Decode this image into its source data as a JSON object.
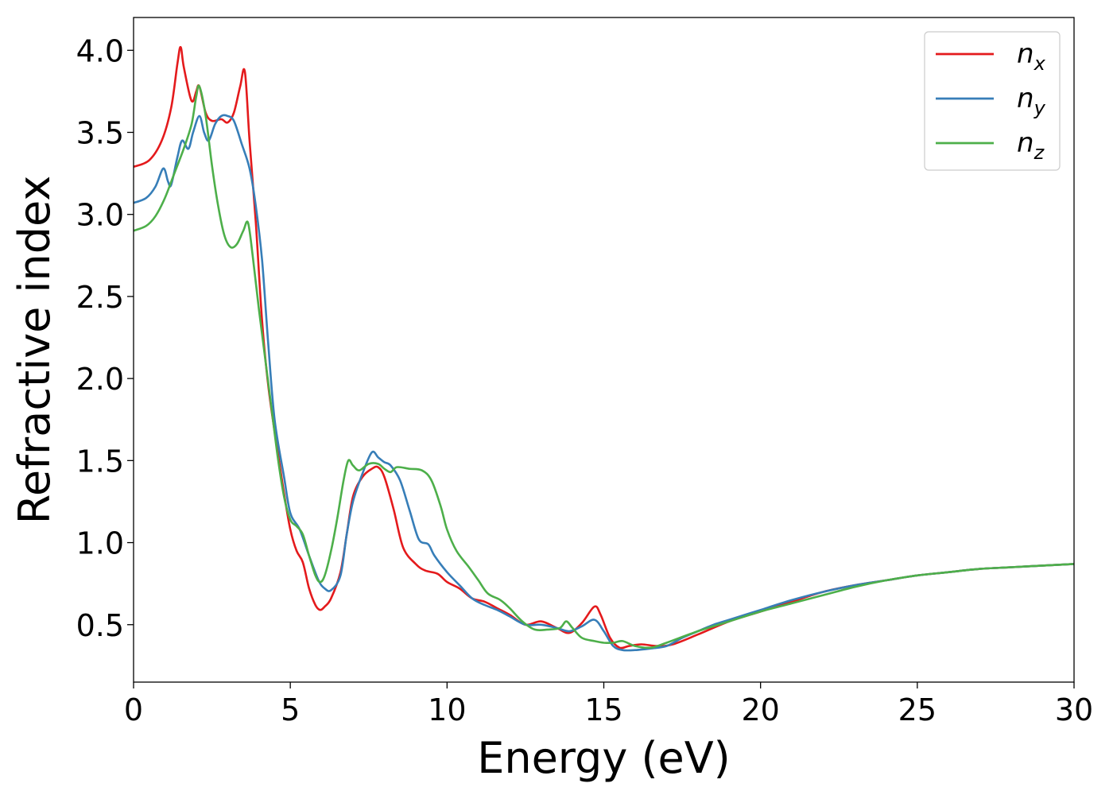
{
  "chart_data": {
    "type": "line",
    "xlabel": "Energy (eV)",
    "ylabel": "Refractive index",
    "xlim": [
      0,
      30
    ],
    "ylim": [
      0.15,
      4.2
    ],
    "xticks": [
      0,
      5,
      10,
      15,
      20,
      25,
      30
    ],
    "xtick_labels": [
      "0",
      "5",
      "10",
      "15",
      "20",
      "25",
      "30"
    ],
    "yticks": [
      0.5,
      1.0,
      1.5,
      2.0,
      2.5,
      3.0,
      3.5,
      4.0
    ],
    "ytick_labels": [
      "0.5",
      "1.0",
      "1.5",
      "2.0",
      "2.5",
      "3.0",
      "3.5",
      "4.0"
    ],
    "grid": false,
    "legend_position": "top-right",
    "series": [
      {
        "name": "n_x",
        "legend_base": "n",
        "legend_sub": "x",
        "color": "#e41a1c",
        "points": [
          [
            0,
            3.29
          ],
          [
            0.5,
            3.33
          ],
          [
            0.9,
            3.45
          ],
          [
            1.2,
            3.65
          ],
          [
            1.4,
            3.92
          ],
          [
            1.5,
            4.02
          ],
          [
            1.6,
            3.9
          ],
          [
            1.8,
            3.72
          ],
          [
            1.9,
            3.69
          ],
          [
            2.0,
            3.75
          ],
          [
            2.1,
            3.78
          ],
          [
            2.3,
            3.62
          ],
          [
            2.5,
            3.57
          ],
          [
            2.8,
            3.58
          ],
          [
            3.0,
            3.56
          ],
          [
            3.2,
            3.62
          ],
          [
            3.4,
            3.78
          ],
          [
            3.55,
            3.87
          ],
          [
            3.7,
            3.45
          ],
          [
            3.9,
            2.95
          ],
          [
            4.1,
            2.35
          ],
          [
            4.3,
            1.95
          ],
          [
            4.6,
            1.55
          ],
          [
            4.8,
            1.3
          ],
          [
            5.0,
            1.08
          ],
          [
            5.2,
            0.95
          ],
          [
            5.4,
            0.88
          ],
          [
            5.6,
            0.72
          ],
          [
            5.8,
            0.62
          ],
          [
            5.95,
            0.59
          ],
          [
            6.1,
            0.61
          ],
          [
            6.3,
            0.66
          ],
          [
            6.6,
            0.82
          ],
          [
            6.8,
            1.05
          ],
          [
            7.0,
            1.28
          ],
          [
            7.3,
            1.4
          ],
          [
            7.6,
            1.45
          ],
          [
            7.8,
            1.46
          ],
          [
            8.0,
            1.4
          ],
          [
            8.3,
            1.2
          ],
          [
            8.6,
            0.97
          ],
          [
            9.0,
            0.87
          ],
          [
            9.3,
            0.83
          ],
          [
            9.7,
            0.81
          ],
          [
            10.0,
            0.76
          ],
          [
            10.4,
            0.72
          ],
          [
            10.8,
            0.66
          ],
          [
            11.2,
            0.64
          ],
          [
            11.6,
            0.6
          ],
          [
            12.0,
            0.56
          ],
          [
            12.5,
            0.5
          ],
          [
            13.0,
            0.52
          ],
          [
            13.5,
            0.48
          ],
          [
            13.9,
            0.45
          ],
          [
            14.3,
            0.51
          ],
          [
            14.7,
            0.61
          ],
          [
            14.9,
            0.56
          ],
          [
            15.2,
            0.42
          ],
          [
            15.5,
            0.36
          ],
          [
            15.8,
            0.37
          ],
          [
            16.2,
            0.38
          ],
          [
            16.7,
            0.37
          ],
          [
            17.2,
            0.38
          ],
          [
            18.0,
            0.44
          ],
          [
            19.0,
            0.52
          ],
          [
            20.0,
            0.58
          ],
          [
            21.0,
            0.64
          ],
          [
            22.0,
            0.7
          ],
          [
            23.0,
            0.74
          ],
          [
            24.0,
            0.77
          ],
          [
            25.0,
            0.8
          ],
          [
            26.0,
            0.82
          ],
          [
            27.0,
            0.84
          ],
          [
            28.0,
            0.85
          ],
          [
            29.0,
            0.86
          ],
          [
            30.0,
            0.87
          ]
        ]
      },
      {
        "name": "n_y",
        "legend_base": "n",
        "legend_sub": "y",
        "color": "#377eb8",
        "points": [
          [
            0,
            3.07
          ],
          [
            0.4,
            3.1
          ],
          [
            0.7,
            3.17
          ],
          [
            0.95,
            3.28
          ],
          [
            1.1,
            3.2
          ],
          [
            1.2,
            3.18
          ],
          [
            1.4,
            3.35
          ],
          [
            1.55,
            3.45
          ],
          [
            1.75,
            3.4
          ],
          [
            1.9,
            3.5
          ],
          [
            2.1,
            3.6
          ],
          [
            2.25,
            3.5
          ],
          [
            2.4,
            3.45
          ],
          [
            2.6,
            3.55
          ],
          [
            2.8,
            3.6
          ],
          [
            3.0,
            3.6
          ],
          [
            3.2,
            3.57
          ],
          [
            3.45,
            3.43
          ],
          [
            3.7,
            3.28
          ],
          [
            3.9,
            3.05
          ],
          [
            4.1,
            2.72
          ],
          [
            4.3,
            2.2
          ],
          [
            4.5,
            1.75
          ],
          [
            4.8,
            1.4
          ],
          [
            5.0,
            1.18
          ],
          [
            5.3,
            1.08
          ],
          [
            5.6,
            0.92
          ],
          [
            5.9,
            0.77
          ],
          [
            6.1,
            0.72
          ],
          [
            6.3,
            0.71
          ],
          [
            6.6,
            0.8
          ],
          [
            6.8,
            1.05
          ],
          [
            7.0,
            1.25
          ],
          [
            7.3,
            1.42
          ],
          [
            7.6,
            1.55
          ],
          [
            7.8,
            1.52
          ],
          [
            8.0,
            1.49
          ],
          [
            8.2,
            1.47
          ],
          [
            8.5,
            1.38
          ],
          [
            8.8,
            1.2
          ],
          [
            9.1,
            1.02
          ],
          [
            9.4,
            0.99
          ],
          [
            9.6,
            0.92
          ],
          [
            10.0,
            0.82
          ],
          [
            10.4,
            0.74
          ],
          [
            10.8,
            0.66
          ],
          [
            11.2,
            0.62
          ],
          [
            11.6,
            0.59
          ],
          [
            12.0,
            0.55
          ],
          [
            12.5,
            0.5
          ],
          [
            13.0,
            0.5
          ],
          [
            13.5,
            0.48
          ],
          [
            13.9,
            0.46
          ],
          [
            14.3,
            0.49
          ],
          [
            14.7,
            0.53
          ],
          [
            15.0,
            0.46
          ],
          [
            15.3,
            0.37
          ],
          [
            15.6,
            0.345
          ],
          [
            16.0,
            0.345
          ],
          [
            16.5,
            0.355
          ],
          [
            17.0,
            0.37
          ],
          [
            17.5,
            0.42
          ],
          [
            18.0,
            0.46
          ],
          [
            18.5,
            0.5
          ],
          [
            19.0,
            0.53
          ],
          [
            20.0,
            0.59
          ],
          [
            21.0,
            0.65
          ],
          [
            22.0,
            0.7
          ],
          [
            23.0,
            0.74
          ],
          [
            24.0,
            0.77
          ],
          [
            25.0,
            0.8
          ],
          [
            26.0,
            0.82
          ],
          [
            27.0,
            0.84
          ],
          [
            28.0,
            0.85
          ],
          [
            29.0,
            0.86
          ],
          [
            30.0,
            0.87
          ]
        ]
      },
      {
        "name": "n_z",
        "legend_base": "n",
        "legend_sub": "z",
        "color": "#4daf4a",
        "points": [
          [
            0,
            2.9
          ],
          [
            0.4,
            2.93
          ],
          [
            0.7,
            2.99
          ],
          [
            1.0,
            3.1
          ],
          [
            1.3,
            3.25
          ],
          [
            1.6,
            3.4
          ],
          [
            1.85,
            3.55
          ],
          [
            2.0,
            3.72
          ],
          [
            2.1,
            3.78
          ],
          [
            2.3,
            3.6
          ],
          [
            2.5,
            3.3
          ],
          [
            2.7,
            3.05
          ],
          [
            2.9,
            2.87
          ],
          [
            3.1,
            2.8
          ],
          [
            3.3,
            2.82
          ],
          [
            3.5,
            2.9
          ],
          [
            3.65,
            2.95
          ],
          [
            3.8,
            2.75
          ],
          [
            4.0,
            2.42
          ],
          [
            4.2,
            2.12
          ],
          [
            4.4,
            1.82
          ],
          [
            4.6,
            1.52
          ],
          [
            4.8,
            1.28
          ],
          [
            5.0,
            1.14
          ],
          [
            5.2,
            1.1
          ],
          [
            5.4,
            1.05
          ],
          [
            5.6,
            0.92
          ],
          [
            5.8,
            0.8
          ],
          [
            5.95,
            0.76
          ],
          [
            6.1,
            0.8
          ],
          [
            6.3,
            0.95
          ],
          [
            6.5,
            1.15
          ],
          [
            6.7,
            1.38
          ],
          [
            6.85,
            1.5
          ],
          [
            7.0,
            1.47
          ],
          [
            7.2,
            1.44
          ],
          [
            7.5,
            1.48
          ],
          [
            7.8,
            1.48
          ],
          [
            8.0,
            1.45
          ],
          [
            8.2,
            1.43
          ],
          [
            8.4,
            1.46
          ],
          [
            8.8,
            1.45
          ],
          [
            9.2,
            1.44
          ],
          [
            9.5,
            1.38
          ],
          [
            9.8,
            1.22
          ],
          [
            10.0,
            1.08
          ],
          [
            10.3,
            0.95
          ],
          [
            10.7,
            0.85
          ],
          [
            11.0,
            0.77
          ],
          [
            11.3,
            0.69
          ],
          [
            11.7,
            0.65
          ],
          [
            12.0,
            0.6
          ],
          [
            12.4,
            0.52
          ],
          [
            12.8,
            0.47
          ],
          [
            13.2,
            0.47
          ],
          [
            13.6,
            0.48
          ],
          [
            13.8,
            0.52
          ],
          [
            14.0,
            0.48
          ],
          [
            14.3,
            0.42
          ],
          [
            14.7,
            0.4
          ],
          [
            15.0,
            0.39
          ],
          [
            15.3,
            0.39
          ],
          [
            15.6,
            0.4
          ],
          [
            16.0,
            0.37
          ],
          [
            16.5,
            0.36
          ],
          [
            17.0,
            0.39
          ],
          [
            18.0,
            0.46
          ],
          [
            19.0,
            0.52
          ],
          [
            20.0,
            0.58
          ],
          [
            21.0,
            0.63
          ],
          [
            22.0,
            0.68
          ],
          [
            23.0,
            0.73
          ],
          [
            24.0,
            0.77
          ],
          [
            25.0,
            0.8
          ],
          [
            26.0,
            0.82
          ],
          [
            27.0,
            0.84
          ],
          [
            28.0,
            0.85
          ],
          [
            29.0,
            0.86
          ],
          [
            30.0,
            0.87
          ]
        ]
      }
    ]
  }
}
